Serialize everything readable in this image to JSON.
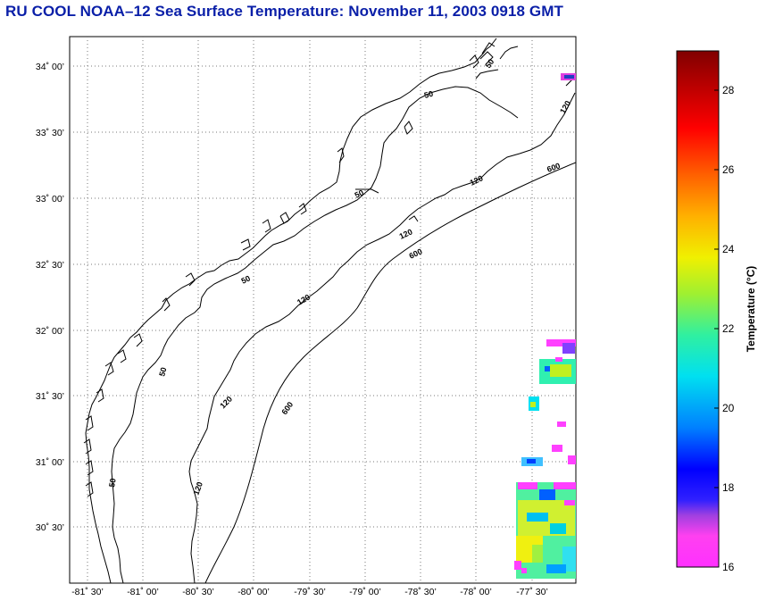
{
  "title": "RU COOL  NOAA–12  Sea Surface Temperature:  November 11, 2003 0918 GMT",
  "map": {
    "lat_ticks": [
      "34˚ 00’",
      "33˚ 30’",
      "33˚ 00’",
      "32˚ 30’",
      "32˚ 00’",
      "31˚ 30’",
      "31˚ 00’",
      "30˚ 30’"
    ],
    "lon_ticks": [
      "-81˚ 30’",
      "-81˚ 00’",
      "-80˚ 30’",
      "-80˚ 00’",
      "-79˚ 30’",
      "-79˚ 00’",
      "-78˚ 30’",
      "-78˚ 00’",
      "-77˚ 30’"
    ],
    "contour_labels": [
      "50",
      "50",
      "50",
      "50",
      "50",
      "50",
      "120",
      "120",
      "120",
      "120",
      "120",
      "120",
      "600",
      "600",
      "600"
    ]
  },
  "colorbar": {
    "label": "Temperature (°C)",
    "ticks": [
      "28",
      "26",
      "24",
      "22",
      "20",
      "18",
      "16"
    ],
    "min": 16,
    "max": 29
  },
  "colors": {
    "title": "#0a1fa8"
  }
}
